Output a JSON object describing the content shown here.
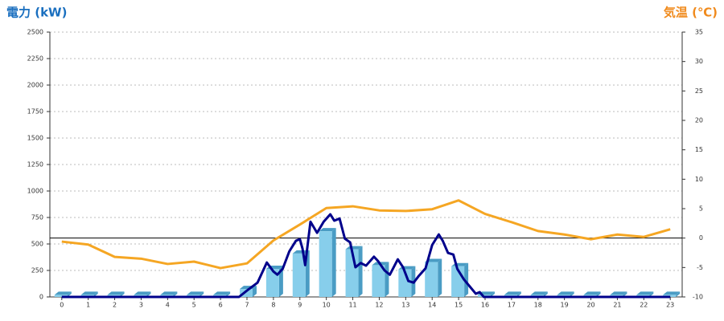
{
  "chart_data": {
    "type": "combo",
    "left_title": "電力 (kW)",
    "left_title_color": "#1a6fbf",
    "right_title": "気温 (℃)",
    "right_title_color": "#f08a1c",
    "x": [
      0,
      1,
      2,
      3,
      4,
      5,
      6,
      7,
      8,
      9,
      10,
      11,
      12,
      13,
      14,
      15,
      16,
      17,
      18,
      19,
      20,
      21,
      22,
      23
    ],
    "xlim": [
      -0.45,
      23.45
    ],
    "xticks": [
      0,
      1,
      2,
      3,
      4,
      5,
      6,
      7,
      8,
      9,
      10,
      11,
      12,
      13,
      14,
      15,
      16,
      17,
      18,
      19,
      20,
      21,
      22,
      23
    ],
    "ylim": [
      0,
      2500
    ],
    "yticks": [
      0,
      250,
      500,
      750,
      1000,
      1250,
      1500,
      1750,
      2000,
      2250,
      2500
    ],
    "y2lim": [
      -10,
      35
    ],
    "y2ticks": [
      -10,
      -5,
      0,
      5,
      10,
      15,
      20,
      25,
      30,
      35
    ],
    "grid": true,
    "series": [
      {
        "type": "bar",
        "color": "#87ceeb",
        "side_color": "#4a9cc4",
        "values": [
          20,
          20,
          20,
          20,
          20,
          20,
          20,
          75,
          265,
          410,
          620,
          450,
          300,
          260,
          330,
          290,
          20,
          20,
          20,
          20,
          20,
          20,
          20,
          20
        ]
      },
      {
        "type": "line",
        "color": "#00008b",
        "x": [
          0,
          6.7,
          7.0,
          7.4,
          7.75,
          8.0,
          8.15,
          8.35,
          8.6,
          8.85,
          9.0,
          9.1,
          9.2,
          9.4,
          9.65,
          9.9,
          10.15,
          10.3,
          10.5,
          10.7,
          10.9,
          11.1,
          11.3,
          11.5,
          11.8,
          11.95,
          12.2,
          12.4,
          12.7,
          12.9,
          13.1,
          13.3,
          13.5,
          13.75,
          14.0,
          14.25,
          14.4,
          14.6,
          14.8,
          14.95,
          15.2,
          15.4,
          15.65,
          15.8,
          15.95,
          23
        ],
        "values": [
          0,
          0,
          60,
          135,
          325,
          240,
          210,
          265,
          430,
          530,
          545,
          455,
          300,
          710,
          605,
          710,
          780,
          720,
          740,
          550,
          515,
          280,
          320,
          295,
          380,
          340,
          250,
          210,
          355,
          280,
          150,
          135,
          200,
          270,
          490,
          590,
          530,
          415,
          400,
          265,
          165,
          105,
          30,
          45,
          0,
          0
        ]
      },
      {
        "type": "line",
        "axis": "y2",
        "color": "#f5a623",
        "values": [
          -0.6,
          -1.1,
          -3.2,
          -3.5,
          -4.4,
          -4.0,
          -5.1,
          -4.3,
          -0.4,
          2.3,
          5.1,
          5.4,
          4.7,
          4.6,
          4.9,
          6.4,
          4.1,
          2.7,
          1.2,
          0.6,
          -0.2,
          0.6,
          0.2,
          1.5
        ]
      }
    ]
  }
}
